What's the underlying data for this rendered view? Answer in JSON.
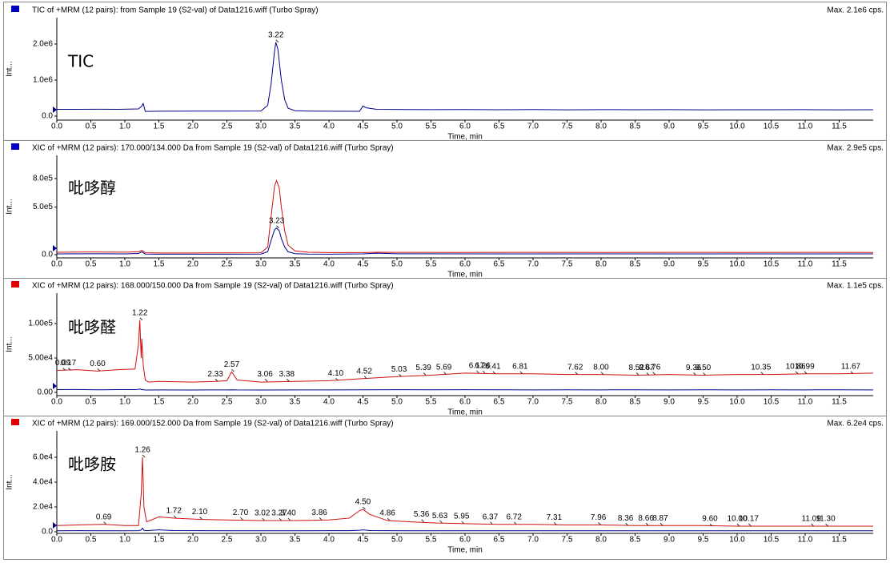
{
  "chart_data": [
    {
      "type": "line",
      "title": "TIC of +MRM (12 pairs): from Sample 19 (S2-val) of Data1216.wiff (Turbo Spray)",
      "max_label": "Max. 2.1e6 cps.",
      "annotation": "TIC",
      "xlabel": "Time, min",
      "ylabel": "Int...",
      "xlim": [
        0,
        12
      ],
      "ylim": [
        -111000,
        2733000
      ],
      "xticks": [
        {
          "value": 0,
          "label": "0.0"
        },
        0.5,
        {
          "value": 1,
          "label": "1.0"
        },
        1.5,
        {
          "value": 2,
          "label": "2.0"
        },
        2.5,
        {
          "value": 3,
          "label": "3.0"
        },
        3.5,
        {
          "value": 4,
          "label": "4.0"
        },
        4.5,
        {
          "value": 5,
          "label": "5.0"
        },
        5.5,
        {
          "value": 6,
          "label": "6.0"
        },
        6.5,
        {
          "value": 7,
          "label": "7.0"
        },
        7.5,
        {
          "value": 8,
          "label": "8.0"
        },
        8.5,
        {
          "value": 9,
          "label": "9.0"
        },
        9.5,
        {
          "value": 10,
          "label": "10.0"
        },
        10.5,
        {
          "value": 11,
          "label": "11.0"
        },
        11.5
      ],
      "yticks": [
        {
          "value": 0,
          "label": "0.0"
        },
        {
          "value": 1000000,
          "label": "1.0e6"
        },
        {
          "value": 2000000,
          "label": "2.0e6"
        }
      ],
      "x": [
        0,
        0.3,
        0.6,
        0.9,
        1.2,
        1.25,
        1.27,
        1.3,
        1.5,
        2.0,
        2.5,
        3.0,
        3.1,
        3.15,
        3.2,
        3.22,
        3.25,
        3.3,
        3.35,
        3.4,
        3.5,
        3.7,
        4.0,
        4.45,
        4.5,
        4.55,
        4.7,
        5.0,
        5.5,
        6.0,
        6.5,
        7.0,
        7.5,
        8.0,
        8.5,
        9.0,
        9.5,
        10.0,
        10.5,
        11.0,
        11.5,
        12.0
      ],
      "series": [
        {
          "color": "#00008b",
          "values": [
            190000,
            188000,
            192000,
            189000,
            200000,
            280000,
            350000,
            130000,
            135000,
            138000,
            140000,
            142000,
            300000,
            900000,
            1800000,
            2050000,
            1850000,
            1000000,
            450000,
            220000,
            150000,
            140000,
            135000,
            132000,
            280000,
            230000,
            190000,
            185000,
            180000,
            183000,
            178000,
            182000,
            176000,
            180000,
            178000,
            181000,
            175000,
            179000,
            177000,
            180000,
            176000,
            178000
          ]
        }
      ],
      "peaks": [
        {
          "time": 3.22,
          "intensity": 2050000
        }
      ]
    },
    {
      "type": "line",
      "title": "XIC of +MRM (12 pairs): 170.000/134.000 Da  from Sample 19 (S2-val) of Data1216.wiff (Turbo Spray)",
      "max_label": "Max. 2.9e5 cps.",
      "annotation": "吡哆醇",
      "xlabel": "Time, min",
      "ylabel": "Int...",
      "xlim": [
        0,
        12
      ],
      "ylim": [
        -34000,
        1044000
      ],
      "xticks": [
        {
          "value": 0,
          "label": "0.0"
        },
        0.5,
        {
          "value": 1,
          "label": "1.0"
        },
        1.5,
        {
          "value": 2,
          "label": "2.0"
        },
        2.5,
        {
          "value": 3,
          "label": "3.0"
        },
        3.5,
        {
          "value": 4,
          "label": "4.0"
        },
        4.5,
        {
          "value": 5,
          "label": "5.0"
        },
        5.5,
        {
          "value": 6,
          "label": "6.0"
        },
        6.5,
        {
          "value": 7,
          "label": "7.0"
        },
        7.5,
        {
          "value": 8,
          "label": "8.0"
        },
        8.5,
        {
          "value": 9,
          "label": "9.0"
        },
        9.5,
        {
          "value": 10,
          "label": "10.0"
        },
        10.5,
        {
          "value": 11,
          "label": "11.0"
        },
        11.5
      ],
      "yticks": [
        {
          "value": 0,
          "label": "0.0"
        },
        {
          "value": 500000,
          "label": "5.0e5"
        },
        {
          "value": 800000,
          "label": "8.0e5"
        }
      ],
      "x": [
        0,
        0.5,
        1.0,
        1.2,
        1.25,
        1.3,
        1.5,
        2.0,
        2.5,
        3.0,
        3.1,
        3.15,
        3.2,
        3.23,
        3.27,
        3.3,
        3.35,
        3.4,
        3.5,
        3.7,
        4.0,
        4.5,
        4.7,
        5.0,
        6.0,
        7.0,
        8.0,
        9.0,
        10.0,
        11.0,
        12.0
      ],
      "series": [
        {
          "color": "#d01010",
          "values": [
            25000,
            28000,
            26000,
            30000,
            45000,
            20000,
            18000,
            18000,
            19000,
            20000,
            80000,
            400000,
            720000,
            780000,
            700000,
            500000,
            250000,
            100000,
            40000,
            25000,
            22000,
            22000,
            25000,
            24000,
            23000,
            24000,
            23000,
            24000,
            23000,
            24000,
            23000
          ]
        },
        {
          "color": "#00008b",
          "values": [
            8000,
            9000,
            8000,
            12000,
            30000,
            6000,
            5000,
            5000,
            5000,
            6000,
            30000,
            150000,
            260000,
            280000,
            250000,
            170000,
            80000,
            30000,
            10000,
            6000,
            5000,
            8000,
            15000,
            9000,
            8000,
            8000,
            8000,
            8000,
            8000,
            8000,
            8000
          ]
        }
      ],
      "peaks": [
        {
          "time": 3.23,
          "intensity": 280000
        }
      ]
    },
    {
      "type": "line",
      "title": "XIC of +MRM (12 pairs): 168.000/150.000 Da  from Sample 19 (S2-val) of Data1216.wiff (Turbo Spray)",
      "max_label": "Max. 1.1e5 cps.",
      "annotation": "吡哆醛",
      "xlabel": "Time, min",
      "ylabel": "Int...",
      "xlim": [
        0,
        12
      ],
      "ylim": [
        -4650,
        144200
      ],
      "xticks": [
        {
          "value": 0,
          "label": "0.0"
        },
        0.5,
        {
          "value": 1,
          "label": "1.0"
        },
        1.5,
        {
          "value": 2,
          "label": "2.0"
        },
        2.5,
        {
          "value": 3,
          "label": "3.0"
        },
        3.5,
        {
          "value": 4,
          "label": "4.0"
        },
        4.5,
        {
          "value": 5,
          "label": "5.0"
        },
        5.5,
        {
          "value": 6,
          "label": "6.0"
        },
        6.5,
        {
          "value": 7,
          "label": "7.0"
        },
        7.5,
        {
          "value": 8,
          "label": "8.0"
        },
        8.5,
        {
          "value": 9,
          "label": "9.0"
        },
        9.5,
        {
          "value": 10,
          "label": "10.0"
        },
        10.5,
        {
          "value": 11,
          "label": "11.0"
        },
        11.5
      ],
      "yticks": [
        {
          "value": 0,
          "label": "0.00"
        },
        {
          "value": 50000,
          "label": "5.00e4"
        },
        {
          "value": 100000,
          "label": "1.00e5"
        }
      ],
      "x": [
        0,
        0.3,
        0.6,
        0.9,
        1.15,
        1.2,
        1.22,
        1.24,
        1.25,
        1.27,
        1.3,
        1.35,
        1.5,
        2.0,
        2.33,
        2.5,
        2.57,
        2.65,
        3.0,
        3.5,
        4.0,
        4.5,
        5.0,
        5.5,
        6.0,
        6.5,
        7.0,
        7.5,
        8.0,
        8.5,
        9.0,
        9.5,
        10.0,
        10.5,
        11.0,
        11.5,
        12.0
      ],
      "series": [
        {
          "color": "#d01010",
          "values": [
            32000,
            33000,
            31000,
            33000,
            34000,
            70000,
            105000,
            50000,
            78000,
            40000,
            18000,
            15000,
            16000,
            15000,
            16000,
            17000,
            30000,
            18000,
            15000,
            16000,
            17000,
            20000,
            23000,
            25000,
            28000,
            27000,
            27000,
            26000,
            26000,
            25000,
            26000,
            25000,
            26000,
            26000,
            27000,
            27000,
            28000
          ]
        },
        {
          "color": "#00008b",
          "values": [
            4000,
            4200,
            3800,
            4000,
            4000,
            4500,
            5000,
            4000,
            4200,
            3900,
            3500,
            3500,
            3600,
            3500,
            3700,
            3600,
            3800,
            3600,
            3500,
            3600,
            3700,
            3800,
            3900,
            3800,
            3900,
            3800,
            3700,
            3800,
            3700,
            3800,
            3700,
            3800,
            3700,
            3800,
            3700,
            3800,
            3700
          ]
        }
      ],
      "peaks": [
        {
          "time": 0.09,
          "intensity": 32000
        },
        {
          "time": 0.17,
          "intensity": 32000
        },
        {
          "time": 0.6,
          "label": "0.60",
          "intensity": 31000
        },
        {
          "time": 1.22,
          "intensity": 105000
        },
        {
          "time": 2.33,
          "intensity": 16000
        },
        {
          "time": 2.57,
          "intensity": 30000
        },
        {
          "time": 3.06,
          "intensity": 16000
        },
        {
          "time": 3.38,
          "intensity": 16000
        },
        {
          "time": 4.1,
          "label": "4.10",
          "intensity": 17000
        },
        {
          "time": 4.52,
          "intensity": 20000
        },
        {
          "time": 5.03,
          "intensity": 23000
        },
        {
          "time": 5.39,
          "intensity": 25000
        },
        {
          "time": 5.69,
          "intensity": 26000
        },
        {
          "time": 6.17,
          "intensity": 28000
        },
        {
          "time": 6.26,
          "intensity": 28000
        },
        {
          "time": 6.41,
          "intensity": 27000
        },
        {
          "time": 6.81,
          "intensity": 27000
        },
        {
          "time": 7.62,
          "intensity": 26000
        },
        {
          "time": 8,
          "label": "8.00",
          "intensity": 26000
        },
        {
          "time": 8.52,
          "intensity": 25000
        },
        {
          "time": 8.67,
          "intensity": 25000
        },
        {
          "time": 8.76,
          "intensity": 26000
        },
        {
          "time": 9.36,
          "intensity": 25000
        },
        {
          "time": 9.5,
          "label": "9.50",
          "intensity": 25000
        },
        {
          "time": 10.35,
          "intensity": 26000
        },
        {
          "time": 10.86,
          "intensity": 27000
        },
        {
          "time": 10.99,
          "intensity": 27000
        },
        {
          "time": 11.67,
          "intensity": 27000
        }
      ]
    },
    {
      "type": "line",
      "title": "XIC of +MRM (12 pairs): 169.000/152.000 Da  from Sample 19 (S2-val) of Data1216.wiff (Turbo Spray)",
      "max_label": "Max. 6.2e4 cps.",
      "annotation": "吡哆胺",
      "xlabel": "Time, min",
      "ylabel": "Int...",
      "xlim": [
        0,
        12
      ],
      "ylim": [
        -1290,
        81300
      ],
      "xticks": [
        {
          "value": 0,
          "label": "0.0"
        },
        0.5,
        {
          "value": 1,
          "label": "1.0"
        },
        1.5,
        {
          "value": 2,
          "label": "2.0"
        },
        2.5,
        {
          "value": 3,
          "label": "3.0"
        },
        3.5,
        {
          "value": 4,
          "label": "4.0"
        },
        4.5,
        {
          "value": 5,
          "label": "5.0"
        },
        5.5,
        {
          "value": 6,
          "label": "6.0"
        },
        6.5,
        {
          "value": 7,
          "label": "7.0"
        },
        7.5,
        {
          "value": 8,
          "label": "8.0"
        },
        8.5,
        {
          "value": 9,
          "label": "9.0"
        },
        9.5,
        {
          "value": 10,
          "label": "10.0"
        },
        10.5,
        {
          "value": 11,
          "label": "11.0"
        },
        11.5
      ],
      "yticks": [
        {
          "value": 0,
          "label": "0.0"
        },
        {
          "value": 20000,
          "label": "2.0e4"
        },
        {
          "value": 40000,
          "label": "4.0e4"
        },
        {
          "value": 60000,
          "label": "6.0e4"
        }
      ],
      "x": [
        0,
        0.3,
        0.69,
        1.0,
        1.2,
        1.24,
        1.26,
        1.28,
        1.32,
        1.5,
        1.72,
        2.1,
        2.5,
        3.0,
        3.5,
        4.0,
        4.3,
        4.45,
        4.5,
        4.6,
        4.86,
        5.2,
        5.6,
        6.0,
        6.5,
        7.0,
        7.5,
        8.0,
        8.5,
        9.0,
        9.5,
        10.0,
        10.5,
        11.0,
        11.5,
        12.0
      ],
      "series": [
        {
          "color": "#d01010",
          "values": [
            5000,
            5500,
            6000,
            5000,
            5000,
            30000,
            60000,
            20000,
            8000,
            12000,
            11000,
            10000,
            9500,
            9000,
            9000,
            9500,
            11000,
            17000,
            18000,
            14000,
            9000,
            8000,
            7000,
            6500,
            6000,
            6000,
            5500,
            5500,
            5000,
            5000,
            5000,
            4500,
            4500,
            4500,
            4500,
            4500
          ]
        },
        {
          "color": "#00008b",
          "values": [
            800,
            900,
            800,
            800,
            900,
            1500,
            3000,
            1200,
            900,
            1500,
            1000,
            900,
            800,
            800,
            800,
            900,
            900,
            1200,
            1500,
            1000,
            900,
            800,
            800,
            800,
            800,
            800,
            800,
            800,
            800,
            800,
            800,
            800,
            800,
            800,
            800,
            800
          ]
        }
      ],
      "peaks": [
        {
          "time": 0.69,
          "intensity": 6000
        },
        {
          "time": 1.26,
          "intensity": 60000
        },
        {
          "time": 1.72,
          "intensity": 11000
        },
        {
          "time": 2.1,
          "label": "2.10",
          "intensity": 10000
        },
        {
          "time": 2.7,
          "label": "2.70",
          "intensity": 9500
        },
        {
          "time": 3.02,
          "intensity": 9000
        },
        {
          "time": 3.27,
          "intensity": 9000
        },
        {
          "time": 3.4,
          "label": "3.40",
          "intensity": 9000
        },
        {
          "time": 3.86,
          "intensity": 9500
        },
        {
          "time": 4.5,
          "label": "4.50",
          "intensity": 18000
        },
        {
          "time": 4.86,
          "intensity": 9000
        },
        {
          "time": 5.36,
          "intensity": 8000
        },
        {
          "time": 5.63,
          "intensity": 7000
        },
        {
          "time": 5.95,
          "intensity": 6500
        },
        {
          "time": 6.37,
          "intensity": 6000
        },
        {
          "time": 6.72,
          "intensity": 6000
        },
        {
          "time": 7.31,
          "intensity": 5500
        },
        {
          "time": 7.96,
          "intensity": 5500
        },
        {
          "time": 8.36,
          "intensity": 5000
        },
        {
          "time": 8.66,
          "intensity": 5000
        },
        {
          "time": 8.87,
          "intensity": 5000
        },
        {
          "time": 9.6,
          "label": "9.60",
          "intensity": 4500
        },
        {
          "time": 10,
          "label": "10.00",
          "intensity": 4500
        },
        {
          "time": 10.17,
          "intensity": 4500
        },
        {
          "time": 11.09,
          "intensity": 4500
        },
        {
          "time": 11.3,
          "label": "11.30",
          "intensity": 4500
        }
      ]
    }
  ]
}
